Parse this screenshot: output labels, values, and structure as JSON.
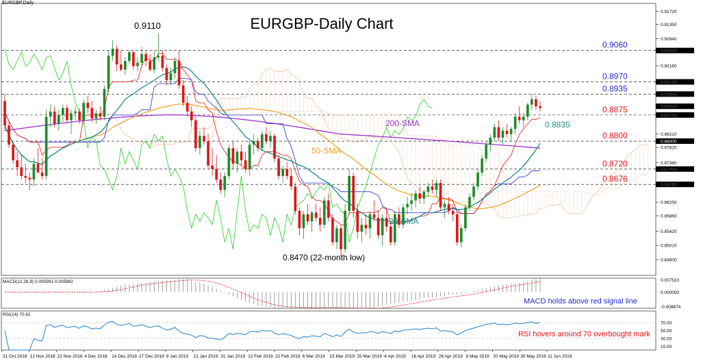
{
  "header": {
    "symbol": "EURGBP,Daily",
    "title": "EURGBP-Daily Chart"
  },
  "colors": {
    "bull": "#1e8a2a",
    "bear": "#e01414",
    "sma20": "#1b8a8e",
    "sma50": "#f0a020",
    "sma200": "#9932cc",
    "tenkan": "#e01414",
    "kijun": "#2a2ad0",
    "chikou": "#22cc22",
    "cloud": "#f0b090",
    "level_blue": "#2a2ad0",
    "level_red": "#e01414"
  },
  "chart_data": {
    "type": "line",
    "title": "EURGBP-Daily Chart",
    "y_axis": {
      "range": [
        0.8415,
        0.9195
      ],
      "ticks": [
        "0.91720",
        "0.91350",
        "0.90940",
        "0.90600",
        "0.90160",
        "0.89700",
        "0.89350",
        "0.89000",
        "0.88750",
        "0.88210",
        "0.87820",
        "0.87380",
        "0.87200",
        "0.86760",
        "0.86250",
        "0.85860",
        "0.85420",
        "0.85010",
        "0.84600"
      ]
    },
    "x_axis": {
      "labels": [
        "31 Oct 2018",
        "12 Nov 2018",
        "22 Nov 2018",
        "4 Dec 2018",
        "14 Dec 2018",
        "27 Dec 2018",
        "9 Jan 2019",
        "21 Jan 2019",
        "31 Jan 2019",
        "12 Feb 2019",
        "22 Feb 2019",
        "6 Mar 2019",
        "15 Mar 2019",
        "25 Mar 2019",
        "4 Apr 2019",
        "16 Apr 2019",
        "26 Apr 2019",
        "8 May 2019",
        "20 May 2019",
        "30 May 2019",
        "11 Jun 2019"
      ]
    },
    "levels": [
      {
        "label": "0.9060",
        "value": 0.906,
        "color": "blue"
      },
      {
        "label": "0.8970",
        "value": 0.897,
        "color": "blue"
      },
      {
        "label": "0.8935",
        "value": 0.8935,
        "color": "blue"
      },
      {
        "label": "0.8875",
        "value": 0.8875,
        "color": "red"
      },
      {
        "label": "0.8800",
        "value": 0.88,
        "color": "red"
      },
      {
        "label": "0.8720",
        "value": 0.872,
        "color": "red"
      },
      {
        "label": "0.8676",
        "value": 0.8676,
        "color": "red"
      }
    ],
    "level_tags": [
      "0.90600",
      "0.89700",
      "0.89350",
      "0.89000",
      "0.88750",
      "0.88000",
      "0.87200",
      "0.86760"
    ],
    "annotations": [
      {
        "text": "0.9110",
        "x": "27 Dec 2018",
        "y": 0.911
      },
      {
        "text": "0.8470 (22-month low)",
        "x": "15 Mar 2019",
        "y": 0.847
      },
      {
        "text": "200-SMA",
        "x": "16 Apr 2019",
        "y": 0.8845
      },
      {
        "text": "50-SMA",
        "x": "4 Apr 2019",
        "y": 0.878
      },
      {
        "text": "20-SMA",
        "x": "4 May 2019",
        "y": 0.856
      },
      {
        "text": "0.8835",
        "x": "11 Jun 2019",
        "y": 0.8835
      }
    ],
    "candles": [
      [
        0.8915,
        0.8935,
        0.883,
        0.8845
      ],
      [
        0.8845,
        0.886,
        0.878,
        0.879
      ],
      [
        0.879,
        0.88,
        0.8735,
        0.8745
      ],
      [
        0.8745,
        0.877,
        0.87,
        0.8725
      ],
      [
        0.8725,
        0.876,
        0.869,
        0.87
      ],
      [
        0.87,
        0.8735,
        0.868,
        0.8695
      ],
      [
        0.8695,
        0.871,
        0.866,
        0.869
      ],
      [
        0.869,
        0.875,
        0.867,
        0.8735
      ],
      [
        0.8735,
        0.878,
        0.871,
        0.871
      ],
      [
        0.871,
        0.875,
        0.869,
        0.87
      ],
      [
        0.87,
        0.889,
        0.869,
        0.887
      ],
      [
        0.887,
        0.8905,
        0.884,
        0.8885
      ],
      [
        0.8885,
        0.89,
        0.884,
        0.885
      ],
      [
        0.885,
        0.889,
        0.883,
        0.8875
      ],
      [
        0.8875,
        0.8905,
        0.8855,
        0.8895
      ],
      [
        0.8895,
        0.8905,
        0.885,
        0.886
      ],
      [
        0.886,
        0.889,
        0.882,
        0.888
      ],
      [
        0.888,
        0.89,
        0.886,
        0.8885
      ],
      [
        0.8885,
        0.8895,
        0.885,
        0.886
      ],
      [
        0.886,
        0.892,
        0.885,
        0.891
      ],
      [
        0.891,
        0.893,
        0.888,
        0.8895
      ],
      [
        0.8895,
        0.8915,
        0.8855,
        0.8865
      ],
      [
        0.8865,
        0.889,
        0.885,
        0.888
      ],
      [
        0.888,
        0.89,
        0.886,
        0.887
      ],
      [
        0.887,
        0.896,
        0.886,
        0.895
      ],
      [
        0.895,
        0.906,
        0.894,
        0.9045
      ],
      [
        0.9045,
        0.909,
        0.903,
        0.9065
      ],
      [
        0.9065,
        0.9075,
        0.9,
        0.902
      ],
      [
        0.902,
        0.906,
        0.9,
        0.9005
      ],
      [
        0.9005,
        0.904,
        0.899,
        0.903
      ],
      [
        0.903,
        0.906,
        0.902,
        0.9055
      ],
      [
        0.9055,
        0.906,
        0.9005,
        0.9015
      ],
      [
        0.9015,
        0.904,
        0.9,
        0.9025
      ],
      [
        0.9025,
        0.907,
        0.901,
        0.905
      ],
      [
        0.905,
        0.906,
        0.9015,
        0.903
      ],
      [
        0.903,
        0.905,
        0.9,
        0.9005
      ],
      [
        0.9005,
        0.906,
        0.8995,
        0.904
      ],
      [
        0.904,
        0.911,
        0.903,
        0.9045
      ],
      [
        0.9045,
        0.906,
        0.9,
        0.901
      ],
      [
        0.901,
        0.902,
        0.896,
        0.8975
      ],
      [
        0.8975,
        0.901,
        0.896,
        0.8995
      ],
      [
        0.8995,
        0.904,
        0.898,
        0.903
      ],
      [
        0.903,
        0.906,
        0.895,
        0.896
      ],
      [
        0.896,
        0.8975,
        0.89,
        0.891
      ],
      [
        0.891,
        0.893,
        0.887,
        0.8885
      ],
      [
        0.8885,
        0.89,
        0.884,
        0.886
      ],
      [
        0.886,
        0.887,
        0.877,
        0.878
      ],
      [
        0.878,
        0.883,
        0.876,
        0.8815
      ],
      [
        0.8815,
        0.884,
        0.879,
        0.88
      ],
      [
        0.88,
        0.882,
        0.872,
        0.873
      ],
      [
        0.873,
        0.878,
        0.87,
        0.872
      ],
      [
        0.872,
        0.876,
        0.868,
        0.869
      ],
      [
        0.869,
        0.871,
        0.865,
        0.866
      ],
      [
        0.866,
        0.871,
        0.864,
        0.87
      ],
      [
        0.87,
        0.879,
        0.869,
        0.878
      ],
      [
        0.878,
        0.88,
        0.872,
        0.8735
      ],
      [
        0.8735,
        0.878,
        0.871,
        0.877
      ],
      [
        0.877,
        0.879,
        0.873,
        0.8745
      ],
      [
        0.8745,
        0.877,
        0.871,
        0.872
      ],
      [
        0.872,
        0.88,
        0.87,
        0.879
      ],
      [
        0.879,
        0.882,
        0.876,
        0.88
      ],
      [
        0.88,
        0.881,
        0.877,
        0.878
      ],
      [
        0.878,
        0.883,
        0.877,
        0.882
      ],
      [
        0.882,
        0.884,
        0.879,
        0.88
      ],
      [
        0.88,
        0.883,
        0.878,
        0.8815
      ],
      [
        0.8815,
        0.882,
        0.874,
        0.875
      ],
      [
        0.875,
        0.876,
        0.869,
        0.87
      ],
      [
        0.87,
        0.873,
        0.868,
        0.872
      ],
      [
        0.872,
        0.874,
        0.869,
        0.87
      ],
      [
        0.87,
        0.872,
        0.866,
        0.867
      ],
      [
        0.867,
        0.868,
        0.859,
        0.86
      ],
      [
        0.86,
        0.861,
        0.853,
        0.855
      ],
      [
        0.855,
        0.86,
        0.852,
        0.859
      ],
      [
        0.859,
        0.862,
        0.856,
        0.857
      ],
      [
        0.857,
        0.86,
        0.854,
        0.8595
      ],
      [
        0.8595,
        0.862,
        0.857,
        0.858
      ],
      [
        0.858,
        0.861,
        0.854,
        0.856
      ],
      [
        0.856,
        0.864,
        0.855,
        0.863
      ],
      [
        0.863,
        0.865,
        0.857,
        0.858
      ],
      [
        0.858,
        0.859,
        0.85,
        0.851
      ],
      [
        0.851,
        0.856,
        0.849,
        0.855
      ],
      [
        0.855,
        0.856,
        0.847,
        0.849
      ],
      [
        0.849,
        0.862,
        0.848,
        0.86
      ],
      [
        0.86,
        0.872,
        0.859,
        0.87
      ],
      [
        0.87,
        0.871,
        0.858,
        0.86
      ],
      [
        0.86,
        0.862,
        0.852,
        0.854
      ],
      [
        0.854,
        0.858,
        0.851,
        0.856
      ],
      [
        0.856,
        0.859,
        0.853,
        0.855
      ],
      [
        0.855,
        0.86,
        0.852,
        0.859
      ],
      [
        0.859,
        0.863,
        0.857,
        0.858
      ],
      [
        0.858,
        0.86,
        0.852,
        0.853
      ],
      [
        0.853,
        0.859,
        0.85,
        0.858
      ],
      [
        0.858,
        0.861,
        0.854,
        0.8555
      ],
      [
        0.8555,
        0.857,
        0.85,
        0.851
      ],
      [
        0.851,
        0.86,
        0.85,
        0.859
      ],
      [
        0.859,
        0.861,
        0.855,
        0.856
      ],
      [
        0.856,
        0.862,
        0.855,
        0.861
      ],
      [
        0.861,
        0.864,
        0.859,
        0.862
      ],
      [
        0.862,
        0.865,
        0.86,
        0.863
      ],
      [
        0.863,
        0.866,
        0.861,
        0.865
      ],
      [
        0.865,
        0.867,
        0.862,
        0.8635
      ],
      [
        0.8635,
        0.866,
        0.862,
        0.8655
      ],
      [
        0.8655,
        0.868,
        0.864,
        0.867
      ],
      [
        0.867,
        0.869,
        0.865,
        0.866
      ],
      [
        0.866,
        0.869,
        0.864,
        0.868
      ],
      [
        0.868,
        0.869,
        0.86,
        0.861
      ],
      [
        0.861,
        0.863,
        0.858,
        0.862
      ],
      [
        0.862,
        0.864,
        0.859,
        0.86
      ],
      [
        0.86,
        0.862,
        0.857,
        0.859
      ],
      [
        0.859,
        0.86,
        0.85,
        0.851
      ],
      [
        0.851,
        0.856,
        0.8495,
        0.855
      ],
      [
        0.855,
        0.862,
        0.854,
        0.861
      ],
      [
        0.861,
        0.865,
        0.86,
        0.864
      ],
      [
        0.864,
        0.868,
        0.863,
        0.867
      ],
      [
        0.867,
        0.872,
        0.866,
        0.871
      ],
      [
        0.871,
        0.876,
        0.87,
        0.875
      ],
      [
        0.875,
        0.88,
        0.874,
        0.879
      ],
      [
        0.879,
        0.882,
        0.877,
        0.881
      ],
      [
        0.881,
        0.885,
        0.88,
        0.884
      ],
      [
        0.884,
        0.886,
        0.88,
        0.881
      ],
      [
        0.881,
        0.884,
        0.879,
        0.883
      ],
      [
        0.883,
        0.885,
        0.881,
        0.882
      ],
      [
        0.882,
        0.884,
        0.88,
        0.8835
      ],
      [
        0.8835,
        0.888,
        0.882,
        0.887
      ],
      [
        0.887,
        0.89,
        0.885,
        0.886
      ],
      [
        0.886,
        0.888,
        0.884,
        0.887
      ],
      [
        0.887,
        0.891,
        0.886,
        0.8905
      ],
      [
        0.8905,
        0.8935,
        0.889,
        0.892
      ],
      [
        0.892,
        0.893,
        0.889,
        0.89
      ],
      [
        0.89,
        0.8915,
        0.8885,
        0.8895
      ]
    ],
    "sma200_end_y": 0.878,
    "macd": {
      "label": "MACD(12,26,9) 0.005991 0.005882",
      "ticks": [
        "0.007510",
        "0.000000",
        "-0.008874"
      ],
      "range": [
        -0.0099,
        0.0085
      ],
      "last": 0.005991
    },
    "rsi": {
      "label": "RSI(14) 70.92",
      "ticks": [
        "70.00",
        "50.00",
        "30.00",
        "10.00"
      ],
      "range": [
        0,
        100
      ],
      "last": 70.92
    }
  },
  "text_notes": {
    "macd": "MACD holds above red signal line",
    "rsi": "RSI hovers around 70 overbought mark"
  }
}
